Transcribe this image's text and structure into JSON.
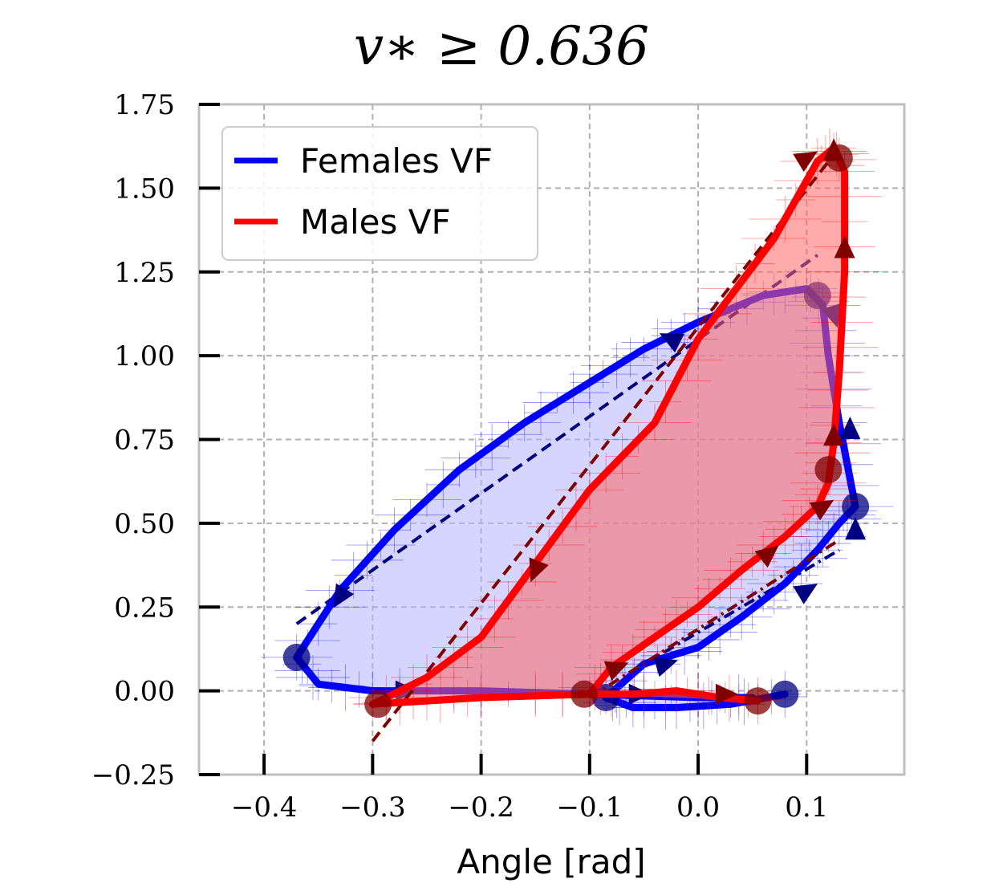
{
  "chart_data": {
    "type": "line",
    "title": "v∗ ≥ 0.636",
    "xlabel": "Angle [rad]",
    "ylabel": "",
    "xlim": [
      -0.46,
      0.19
    ],
    "ylim": [
      -0.25,
      1.75
    ],
    "grid": true,
    "legend_position": "top-left",
    "x_ticks": [
      {
        "value": -0.4,
        "label": "−0.4"
      },
      {
        "value": -0.3,
        "label": "−0.3"
      },
      {
        "value": -0.2,
        "label": "−0.2"
      },
      {
        "value": -0.1,
        "label": "−0.1"
      },
      {
        "value": 0.0,
        "label": "0.0"
      },
      {
        "value": 0.1,
        "label": "0.1"
      }
    ],
    "y_ticks": [
      {
        "value": -0.25,
        "label": "−0.25"
      },
      {
        "value": 0.0,
        "label": "0.00"
      },
      {
        "value": 0.25,
        "label": "0.25"
      },
      {
        "value": 0.5,
        "label": "0.50"
      },
      {
        "value": 0.75,
        "label": "0.75"
      },
      {
        "value": 1.0,
        "label": "1.00"
      },
      {
        "value": 1.25,
        "label": "1.25"
      },
      {
        "value": 1.5,
        "label": "1.50"
      },
      {
        "value": 1.75,
        "label": "1.75"
      }
    ],
    "series": [
      {
        "name": "Females VF",
        "color": "#0000ff",
        "fill": "#b3b3ff",
        "x": [
          0.08,
          0.03,
          -0.02,
          -0.06,
          -0.085,
          -0.05,
          0.0,
          0.04,
          0.08,
          0.11,
          0.13,
          0.145,
          0.13,
          0.12,
          0.115,
          0.1,
          0.06,
          0.0,
          -0.05,
          -0.1,
          -0.16,
          -0.22,
          -0.28,
          -0.33,
          -0.37,
          -0.35,
          -0.3,
          -0.2,
          -0.1,
          0.0,
          0.05
        ],
        "y": [
          -0.01,
          -0.04,
          -0.05,
          -0.05,
          -0.02,
          0.08,
          0.13,
          0.22,
          0.32,
          0.42,
          0.5,
          0.55,
          0.8,
          1.0,
          1.15,
          1.2,
          1.18,
          1.1,
          1.02,
          0.92,
          0.8,
          0.66,
          0.48,
          0.3,
          0.1,
          0.02,
          0.0,
          0.0,
          -0.01,
          -0.02,
          -0.02
        ],
        "markers_x": [
          0.08,
          -0.085,
          0.145,
          0.11,
          -0.37
        ],
        "markers_y": [
          -0.01,
          -0.02,
          0.55,
          1.18,
          0.1
        ],
        "arrows": [
          {
            "x": -0.055,
            "y": -0.01,
            "dx": 1,
            "dy": 0
          },
          {
            "x": -0.03,
            "y": 0.08,
            "dx": 1,
            "dy": 0.3
          },
          {
            "x": 0.1,
            "y": 0.3,
            "dx": 1,
            "dy": 0.6
          },
          {
            "x": 0.145,
            "y": 0.48,
            "dx": 0,
            "dy": 1
          },
          {
            "x": 0.14,
            "y": 0.78,
            "dx": 0,
            "dy": 1
          },
          {
            "x": 0.125,
            "y": 1.12,
            "dx": 0.3,
            "dy": -1
          },
          {
            "x": -0.025,
            "y": 1.05,
            "dx": -1,
            "dy": 0.5
          },
          {
            "x": -0.33,
            "y": 0.28,
            "dx": -0.6,
            "dy": -1
          },
          {
            "x": -0.27,
            "y": 0.0,
            "dx": 1,
            "dy": 0
          }
        ],
        "fit_line": {
          "x": [
            -0.37,
            0.11
          ],
          "y": [
            0.2,
            1.3
          ],
          "dash": "14 8"
        },
        "fit_line_lower": {
          "x": [
            -0.05,
            0.13
          ],
          "y": [
            0.08,
            0.42
          ],
          "dash": "14 6 3 6"
        }
      },
      {
        "name": "Males VF",
        "color": "#ff0000",
        "fill": "#ff6666",
        "x": [
          0.055,
          0.02,
          -0.02,
          -0.06,
          -0.1,
          -0.08,
          -0.04,
          0.0,
          0.04,
          0.08,
          0.11,
          0.12,
          0.125,
          0.13,
          0.135,
          0.135,
          0.125,
          0.11,
          0.07,
          0.0,
          -0.04,
          -0.1,
          -0.15,
          -0.2,
          -0.25,
          -0.3,
          -0.25,
          -0.2,
          -0.1
        ],
        "y": [
          -0.03,
          -0.02,
          0.0,
          -0.01,
          -0.01,
          0.07,
          0.16,
          0.25,
          0.36,
          0.46,
          0.55,
          0.62,
          0.74,
          0.95,
          1.25,
          1.55,
          1.62,
          1.58,
          1.35,
          1.05,
          0.8,
          0.6,
          0.38,
          0.16,
          0.04,
          -0.04,
          -0.03,
          -0.02,
          -0.01
        ],
        "markers_x": [
          0.055,
          -0.105,
          0.12,
          0.13,
          -0.295
        ],
        "markers_y": [
          -0.03,
          -0.01,
          0.66,
          1.59,
          -0.04
        ],
        "arrows": [
          {
            "x": 0.025,
            "y": -0.01,
            "dx": 1,
            "dy": 0
          },
          {
            "x": -0.075,
            "y": 0.07,
            "dx": 1,
            "dy": 0.4
          },
          {
            "x": 0.065,
            "y": 0.41,
            "dx": 1,
            "dy": 0.8
          },
          {
            "x": 0.115,
            "y": 0.55,
            "dx": 1,
            "dy": 0.6
          },
          {
            "x": 0.125,
            "y": 0.76,
            "dx": 0,
            "dy": 1
          },
          {
            "x": 0.135,
            "y": 1.32,
            "dx": 0,
            "dy": 1
          },
          {
            "x": 0.125,
            "y": 1.61,
            "dx": 0,
            "dy": 1
          },
          {
            "x": 0.1,
            "y": 1.59,
            "dx": 1,
            "dy": 0.6
          },
          {
            "x": -0.15,
            "y": 0.36,
            "dx": -0.4,
            "dy": -1
          }
        ],
        "fit_line": {
          "x": [
            -0.3,
            0.13
          ],
          "y": [
            -0.15,
            1.62
          ],
          "dash": "14 8"
        },
        "fit_line_lower": {
          "x": [
            -0.1,
            0.13
          ],
          "y": [
            -0.02,
            0.45
          ],
          "dash": "14 6 3 6"
        }
      }
    ]
  }
}
